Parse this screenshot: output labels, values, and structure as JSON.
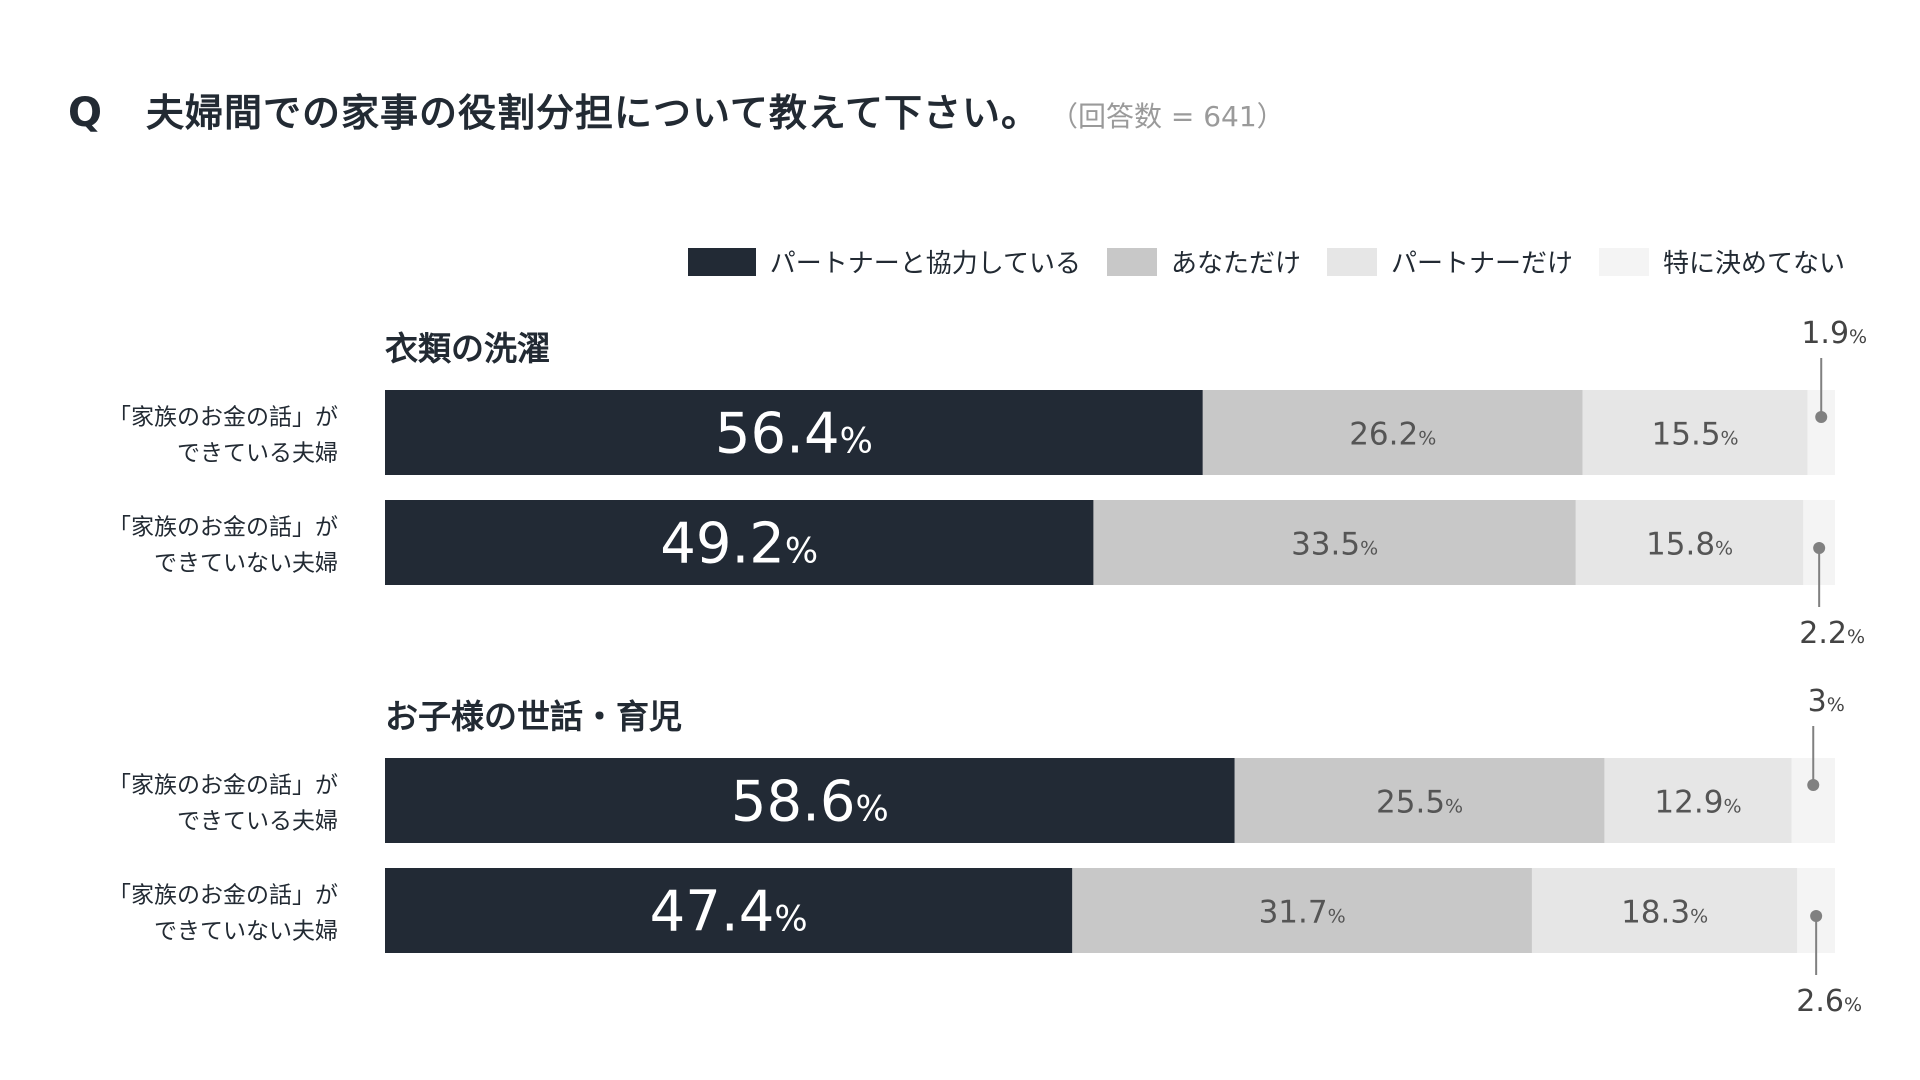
{
  "header": {
    "q_mark": "Q",
    "title": "夫婦間での家事の役割分担について教えて下さい。",
    "note": "（回答数 = 641）"
  },
  "legend": [
    {
      "label": "パートナーと協力している",
      "color": "#222a35"
    },
    {
      "label": "あなただけ",
      "color": "#c8c8c8"
    },
    {
      "label": "パートナーだけ",
      "color": "#e6e6e6"
    },
    {
      "label": "特に決めてない",
      "color": "#f4f4f4"
    }
  ],
  "chart_data": {
    "type": "bar",
    "orientation": "horizontal",
    "stacked": true,
    "unit": "%",
    "series": [
      {
        "name": "パートナーと協力している",
        "color": "#222a35"
      },
      {
        "name": "あなただけ",
        "color": "#c8c8c8"
      },
      {
        "name": "パートナーだけ",
        "color": "#e6e6e6"
      },
      {
        "name": "特に決めてない",
        "color": "#f4f4f4"
      }
    ],
    "groups": [
      {
        "title": "衣類の洗濯",
        "rows": [
          {
            "label_lines": [
              "「家族のお金の話」が",
              "できている夫婦"
            ],
            "values": [
              56.4,
              26.2,
              15.5,
              1.9
            ],
            "labels": [
              "56.4",
              "26.2",
              "15.5",
              "1.9"
            ],
            "callout": "above"
          },
          {
            "label_lines": [
              "「家族のお金の話」が",
              "できていない夫婦"
            ],
            "values": [
              49.2,
              33.5,
              15.8,
              2.2
            ],
            "labels": [
              "49.2",
              "33.5",
              "15.8",
              "2.2"
            ],
            "callout": "below"
          }
        ]
      },
      {
        "title": "お子様の世話・育児",
        "rows": [
          {
            "label_lines": [
              "「家族のお金の話」が",
              "できている夫婦"
            ],
            "values": [
              58.6,
              25.5,
              12.9,
              3
            ],
            "labels": [
              "58.6",
              "25.5",
              "12.9",
              "3"
            ],
            "callout": "above"
          },
          {
            "label_lines": [
              "「家族のお金の話」が",
              "できていない夫婦"
            ],
            "values": [
              47.4,
              31.7,
              18.3,
              2.6
            ],
            "labels": [
              "47.4",
              "31.7",
              "18.3",
              "2.6"
            ],
            "callout": "below"
          }
        ]
      }
    ]
  }
}
